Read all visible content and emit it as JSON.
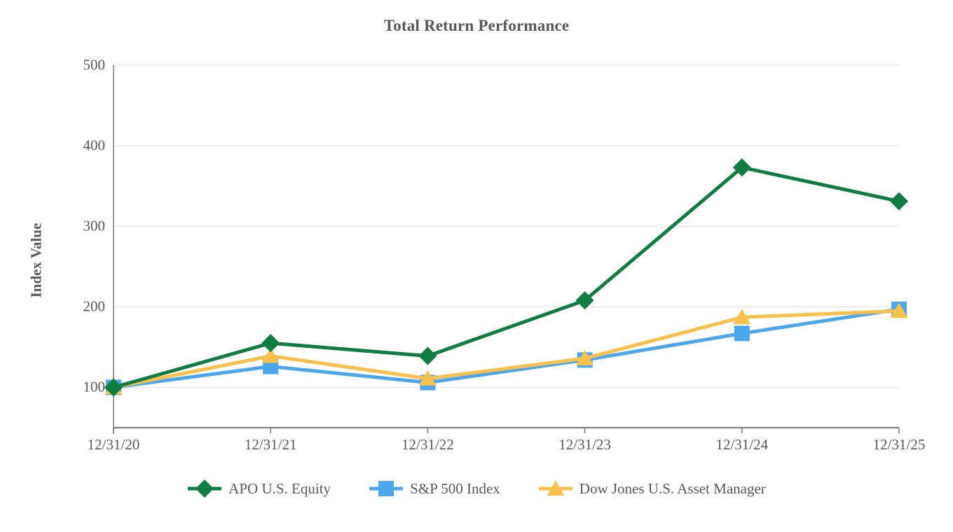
{
  "chart_data": {
    "type": "line",
    "title": "Total Return Performance",
    "xlabel": "",
    "ylabel": "Index Value",
    "categories": [
      "12/31/20",
      "12/31/21",
      "12/31/22",
      "12/31/23",
      "12/31/24",
      "12/31/25"
    ],
    "series": [
      {
        "name": "APO U.S. Equity",
        "color": "#107C41",
        "marker": "diamond",
        "values": [
          100,
          155,
          139,
          208,
          373,
          331
        ]
      },
      {
        "name": "S&P 500 Index",
        "color": "#4BA6EB",
        "marker": "square",
        "values": [
          100,
          126,
          106,
          134,
          167,
          197
        ]
      },
      {
        "name": "Dow Jones U.S. Asset Manager",
        "color": "#F8C04C",
        "marker": "triangle",
        "values": [
          100,
          139,
          111,
          136,
          187,
          195
        ]
      }
    ],
    "ylim": [
      50,
      500
    ],
    "yticks": [
      100,
      200,
      300,
      400,
      500
    ],
    "grid": true,
    "legend_position": "bottom"
  },
  "colors": {
    "text": "#595959",
    "gridline": "#E7E7E7",
    "axis": "#808080"
  }
}
